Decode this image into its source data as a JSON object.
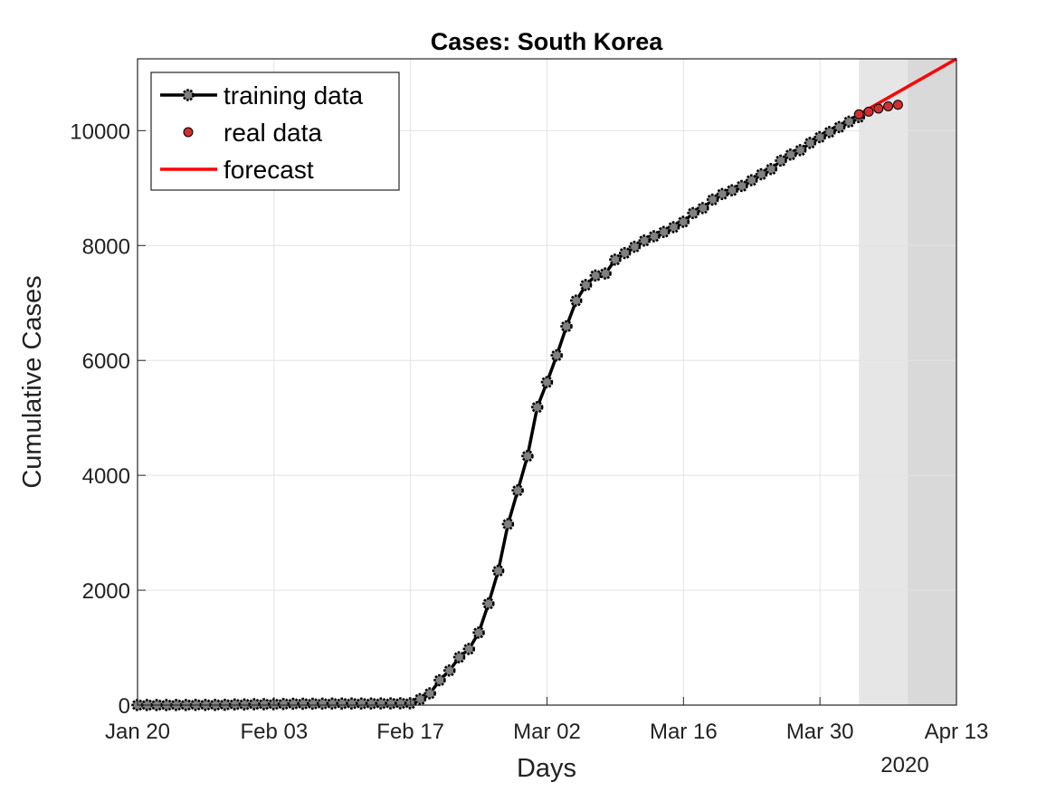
{
  "chart_data": {
    "type": "line",
    "title": "Cases: South Korea",
    "xlabel": "Days",
    "ylabel": "Cumulative Cases",
    "year_label": "2020",
    "x_tick_labels": [
      "Jan 20",
      "Feb 03",
      "Feb 17",
      "Mar 02",
      "Mar 16",
      "Mar 30",
      "Apr 13"
    ],
    "y_tick_labels": [
      "0",
      "2000",
      "4000",
      "6000",
      "8000",
      "10000"
    ],
    "x_range": [
      "2020-01-20",
      "2020-04-13"
    ],
    "ylim": [
      0,
      11250
    ],
    "grid": true,
    "legend_position": "top-left",
    "shaded_regions": [
      {
        "from": "2020-04-03",
        "to": "2020-04-08",
        "color": "#e6e6e6"
      },
      {
        "from": "2020-04-08",
        "to": "2020-04-13",
        "color": "#d9d9d9"
      }
    ],
    "series": [
      {
        "name": "training data",
        "color": "#000000",
        "marker_color": "#808080",
        "start_date": "2020-01-20",
        "values": [
          1,
          1,
          1,
          1,
          2,
          2,
          4,
          4,
          4,
          6,
          11,
          12,
          15,
          15,
          16,
          19,
          23,
          24,
          24,
          25,
          27,
          28,
          28,
          28,
          28,
          29,
          30,
          31,
          31,
          104,
          204,
          433,
          602,
          833,
          977,
          1261,
          1766,
          2337,
          3150,
          3736,
          4335,
          5186,
          5621,
          6088,
          6593,
          7041,
          7313,
          7478,
          7513,
          7755,
          7869,
          7979,
          8086,
          8162,
          8236,
          8320,
          8413,
          8565,
          8652,
          8799,
          8897,
          8961,
          9037,
          9137,
          9241,
          9332,
          9478,
          9583,
          9661,
          9786,
          9887,
          9976,
          10062,
          10156,
          10237
        ]
      },
      {
        "name": "real data",
        "color": "#d03030",
        "start_date": "2020-04-03",
        "values": [
          10284,
          10331,
          10384,
          10423,
          10450
        ]
      },
      {
        "name": "forecast",
        "color": "#ff0000",
        "x": [
          "2020-04-03",
          "2020-04-13"
        ],
        "values": [
          10284,
          11250
        ]
      }
    ]
  }
}
